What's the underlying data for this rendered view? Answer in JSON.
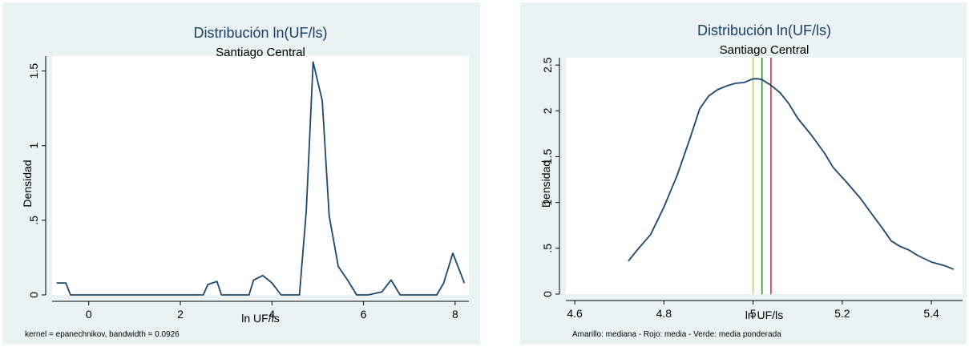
{
  "chart_data": [
    {
      "type": "line",
      "title": "Distribución ln(UF/ls)",
      "subtitle": "Santiago Central",
      "xlabel": "ln UF/ls",
      "ylabel": "Densidad",
      "note": "kernel = epanechnikov, bandwidth = 0.0926",
      "xlim": [
        -0.8,
        8.3
      ],
      "ylim": [
        0,
        1.6
      ],
      "xticks": [
        0,
        2,
        4,
        6,
        8
      ],
      "xtick_labels": [
        "0",
        "2",
        "4",
        "6",
        "8"
      ],
      "yticks": [
        0,
        0.5,
        1,
        1.5
      ],
      "ytick_labels": [
        "0",
        ".5",
        "1",
        "1.5"
      ],
      "grid": false,
      "series": [
        {
          "color": "#1a476f",
          "x": [
            -0.7,
            -0.5,
            -0.4,
            0,
            0.5,
            1,
            1.5,
            2,
            2.5,
            2.6,
            2.8,
            2.9,
            3.2,
            3.5,
            3.6,
            3.8,
            4.0,
            4.2,
            4.4,
            4.6,
            4.75,
            4.9,
            5.1,
            5.25,
            5.45,
            5.65,
            5.85,
            6.1,
            6.4,
            6.6,
            6.8,
            7.2,
            7.6,
            7.75,
            7.95,
            8.2
          ],
          "y": [
            0.08,
            0.08,
            0,
            0,
            0,
            0,
            0,
            0,
            0,
            0.07,
            0.09,
            0,
            0,
            0,
            0.1,
            0.13,
            0.08,
            0,
            0,
            0,
            0.56,
            1.56,
            1.3,
            0.53,
            0.19,
            0.1,
            0,
            0,
            0.02,
            0.1,
            0,
            0,
            0,
            0.08,
            0.28,
            0.08
          ]
        }
      ]
    },
    {
      "type": "line",
      "title": "Distribución ln(UF/ls)",
      "subtitle": "Santiago Central",
      "xlabel": "ln UF/ls",
      "ylabel": "Densidad",
      "note": "Amarillo: mediana - Rojo: media - Verde: media ponderada",
      "xlim": [
        4.58,
        5.47
      ],
      "ylim": [
        0,
        2.58
      ],
      "xticks": [
        4.6,
        4.8,
        5,
        5.2,
        5.4
      ],
      "xtick_labels": [
        "4.6",
        "4.8",
        "5",
        "5.2",
        "5.4"
      ],
      "yticks": [
        0,
        0.5,
        1,
        1.5,
        2,
        2.5
      ],
      "ytick_labels": [
        "0",
        ".5",
        "1",
        "1.5",
        "2",
        "2.5"
      ],
      "grid": false,
      "series": [
        {
          "color": "#1a476f",
          "x": [
            4.72,
            4.74,
            4.77,
            4.8,
            4.83,
            4.86,
            4.88,
            4.9,
            4.92,
            4.94,
            4.96,
            4.98,
            5.0,
            5.01,
            5.02,
            5.04,
            5.06,
            5.08,
            5.1,
            5.13,
            5.16,
            5.18,
            5.21,
            5.24,
            5.27,
            5.29,
            5.31,
            5.33,
            5.35,
            5.37,
            5.4,
            5.43,
            5.45
          ],
          "y": [
            0.36,
            0.48,
            0.65,
            0.95,
            1.3,
            1.72,
            2.02,
            2.16,
            2.23,
            2.27,
            2.3,
            2.31,
            2.35,
            2.35,
            2.34,
            2.28,
            2.2,
            2.08,
            1.92,
            1.74,
            1.54,
            1.38,
            1.22,
            1.05,
            0.85,
            0.72,
            0.58,
            0.52,
            0.48,
            0.42,
            0.35,
            0.31,
            0.27
          ]
        }
      ],
      "vlines": [
        {
          "x": 5.0,
          "color": "#e8c33a"
        },
        {
          "x": 5.02,
          "color": "#2f8f2f"
        },
        {
          "x": 5.04,
          "color": "#e03030"
        }
      ]
    }
  ]
}
